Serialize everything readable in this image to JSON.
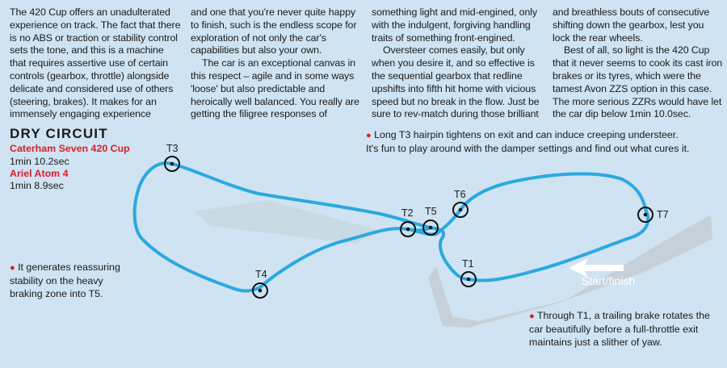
{
  "columns": {
    "c1": {
      "p1": "The 420 Cup offers an unadulterated experience on track. The fact that there is no ABS or traction or stability control sets the tone, and this is a machine that requires assertive use of certain controls (gearbox, throttle) alongside delicate and considered use of others (steering, brakes). It makes for an immensely engaging experience"
    },
    "c2": {
      "p1": "and one that you're never quite happy to finish, such is the endless scope for exploration of not only the car's capabilities but also your own.",
      "p2": "The car is an exceptional canvas in this respect – agile and in some ways 'loose' but also predictable and heroically well balanced. You really are getting the filigree responses of"
    },
    "c3": {
      "p1": "something light and mid-engined, only with the indulgent, forgiving handling traits of something front-engined.",
      "p2": "Oversteer comes easily, but only when you desire it, and so effective is the sequential gearbox that redline upshifts into fifth hit home with vicious speed but no break in the flow. Just be sure to rev-match during those brilliant"
    },
    "c4": {
      "p1": "and breathless bouts of consecutive shifting down the gearbox, lest you lock the rear wheels.",
      "p2": "Best of all, so light is the 420 Cup that it never seems to cook its cast iron brakes or its tyres, which were the tamest Avon ZZS option in this case. The more serious ZZRs would have let the car dip below 1min 10.0sec."
    }
  },
  "circuit": {
    "heading": "DRY CIRCUIT",
    "cars": [
      {
        "name": "Caterham Seven 420 Cup",
        "time": "1min 10.2sec"
      },
      {
        "name": "Ariel Atom 4",
        "time": "1min 8.9sec"
      }
    ],
    "turns": [
      "T1",
      "T2",
      "T3",
      "T4",
      "T5",
      "T6",
      "T7"
    ],
    "start_finish": "Start/finish",
    "colors": {
      "track": "#2aa9e0",
      "accent": "#d6202a",
      "background": "#cfe3f2",
      "runoff": "#c4cdd4"
    }
  },
  "notes": {
    "t3_line1": "Long T3 hairpin tightens on exit and can induce creeping understeer.",
    "t3_line2": "It's fun to play around with the damper settings and find out what cures it.",
    "t5": "It generates reassuring stability on the heavy braking zone into T5.",
    "t1": "Through T1, a trailing brake rotates the car beautifully before a full-throttle exit maintains just a slither of yaw."
  }
}
